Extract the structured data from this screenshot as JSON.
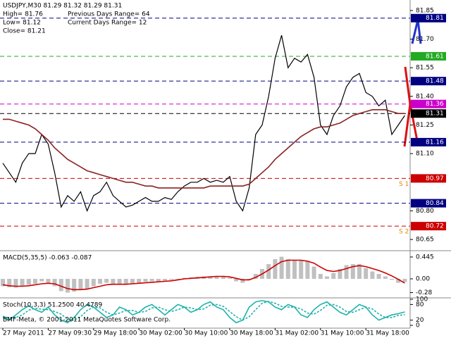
{
  "chart_data": [
    {
      "type": "line",
      "title": "USDJPY,M30  81.29 81.32 81.29 81.31",
      "annotations": [
        "High= 81.76",
        "Previous Days Range= 64",
        "Low= 81.12",
        "Current Days Range= 12",
        "Close= 81.21"
      ],
      "level_annotations": [
        "S 1",
        "S 2"
      ],
      "categories": [
        "27 May 2011",
        null,
        null,
        null,
        null,
        null,
        null,
        "27 May 09:30",
        null,
        null,
        null,
        null,
        null,
        null,
        "29 May 18:00",
        null,
        null,
        null,
        null,
        null,
        null,
        "30 May 02:00",
        null,
        null,
        null,
        null,
        null,
        null,
        "30 May 10:00",
        null,
        null,
        null,
        null,
        null,
        null,
        "30 May 18:00",
        null,
        null,
        null,
        null,
        null,
        null,
        "31 May 02:00",
        null,
        null,
        null,
        null,
        null,
        null,
        "31 May 10:00",
        null,
        null,
        null,
        null,
        null,
        null,
        "31 May 18:00",
        null,
        null,
        null,
        null,
        null,
        null
      ],
      "series": [
        {
          "name": "USDJPY",
          "color": "#000000",
          "values": [
            81.05,
            81.0,
            80.95,
            81.05,
            81.1,
            81.1,
            81.2,
            81.15,
            81.0,
            80.82,
            80.88,
            80.85,
            80.9,
            80.8,
            80.88,
            80.9,
            80.95,
            80.88,
            80.85,
            80.82,
            80.83,
            80.85,
            80.87,
            80.85,
            80.85,
            80.87,
            80.86,
            80.9,
            80.93,
            80.95,
            80.95,
            80.97,
            80.95,
            80.96,
            80.95,
            80.98,
            80.85,
            80.8,
            80.92,
            81.2,
            81.25,
            81.4,
            81.6,
            81.72,
            81.55,
            81.6,
            81.58,
            81.62,
            81.5,
            81.25,
            81.2,
            81.3,
            81.35,
            81.45,
            81.5,
            81.52,
            81.42,
            81.4,
            81.35,
            81.38,
            81.2,
            81.25,
            81.3
          ]
        },
        {
          "name": "MA",
          "color": "#8b2323",
          "values": [
            81.28,
            81.28,
            81.27,
            81.26,
            81.25,
            81.23,
            81.2,
            81.17,
            81.13,
            81.1,
            81.07,
            81.05,
            81.03,
            81.01,
            81.0,
            80.99,
            80.98,
            80.97,
            80.96,
            80.95,
            80.95,
            80.94,
            80.93,
            80.93,
            80.92,
            80.92,
            80.92,
            80.92,
            80.92,
            80.92,
            80.92,
            80.92,
            80.93,
            80.93,
            80.93,
            80.93,
            80.93,
            80.93,
            80.94,
            80.97,
            81.0,
            81.03,
            81.07,
            81.1,
            81.13,
            81.16,
            81.19,
            81.21,
            81.23,
            81.24,
            81.24,
            81.25,
            81.26,
            81.28,
            81.3,
            81.31,
            81.32,
            81.33,
            81.33,
            81.33,
            81.32,
            81.31,
            81.31
          ]
        }
      ],
      "levels": [
        {
          "value": 81.81,
          "color": "#000080"
        },
        {
          "value": 81.61,
          "color": "#22aa22"
        },
        {
          "value": 81.48,
          "color": "#000080"
        },
        {
          "value": 81.36,
          "color": "#cc00cc"
        },
        {
          "value": 81.31,
          "color": "#000000"
        },
        {
          "value": 81.16,
          "color": "#000080"
        },
        {
          "value": 80.97,
          "color": "#cc0000"
        },
        {
          "value": 80.84,
          "color": "#000080"
        },
        {
          "value": 80.72,
          "color": "#cc0000"
        }
      ],
      "ylim": [
        80.595,
        81.905
      ],
      "yticks": [
        81.85,
        {
          "value": 81.7,
          "label": "81.70"
        },
        81.55,
        {
          "value": 81.4,
          "label": "81.40"
        },
        81.25,
        {
          "value": 81.1,
          "label": "81.10"
        },
        {
          "value": 80.8,
          "label": "80.80"
        },
        80.65
      ]
    },
    {
      "type": "bar",
      "title": "MACD(5,35,5) -0.063 -0.087",
      "series": [
        {
          "name": "MACD",
          "type": "bar",
          "color": "#c0c0c0",
          "values": [
            -0.15,
            -0.17,
            -0.18,
            -0.15,
            -0.12,
            -0.1,
            -0.05,
            -0.08,
            -0.15,
            -0.25,
            -0.28,
            -0.26,
            -0.22,
            -0.2,
            -0.15,
            -0.1,
            -0.08,
            -0.1,
            -0.12,
            -0.12,
            -0.1,
            -0.08,
            -0.06,
            -0.05,
            -0.05,
            -0.04,
            -0.02,
            0.0,
            0.02,
            0.03,
            0.04,
            0.05,
            0.05,
            0.06,
            0.06,
            0.02,
            -0.05,
            -0.08,
            -0.02,
            0.1,
            0.2,
            0.3,
            0.4,
            0.45,
            0.4,
            0.38,
            0.38,
            0.35,
            0.25,
            0.1,
            0.05,
            0.12,
            0.2,
            0.28,
            0.3,
            0.3,
            0.22,
            0.15,
            0.1,
            0.05,
            -0.02,
            -0.08,
            -0.063
          ]
        },
        {
          "name": "Signal",
          "type": "line",
          "color": "#cc0000",
          "values": [
            -0.12,
            -0.14,
            -0.15,
            -0.15,
            -0.14,
            -0.12,
            -0.1,
            -0.09,
            -0.1,
            -0.15,
            -0.2,
            -0.22,
            -0.22,
            -0.21,
            -0.18,
            -0.15,
            -0.12,
            -0.11,
            -0.11,
            -0.11,
            -0.1,
            -0.09,
            -0.08,
            -0.07,
            -0.06,
            -0.05,
            -0.04,
            -0.02,
            0.0,
            0.01,
            0.02,
            0.03,
            0.04,
            0.05,
            0.05,
            0.04,
            0.01,
            -0.02,
            -0.02,
            0.03,
            0.1,
            0.18,
            0.27,
            0.35,
            0.38,
            0.38,
            0.38,
            0.36,
            0.32,
            0.24,
            0.17,
            0.15,
            0.17,
            0.21,
            0.25,
            0.27,
            0.25,
            0.21,
            0.17,
            0.12,
            0.06,
            -0.01,
            -0.087
          ]
        }
      ],
      "ylim": [
        -0.373,
        0.545
      ],
      "yticks": [
        0.445,
        {
          "value": 0,
          "label": "0.00"
        },
        -0.28
      ]
    },
    {
      "type": "line",
      "title": "Stoch(10,3,3) 51.2500 40.4789",
      "copyright": "BMF-Meta, © 2001-2011 MetaQuotes Software Corp.",
      "series": [
        {
          "name": "Main",
          "color": "#20b2aa",
          "values": [
            30,
            20,
            40,
            60,
            75,
            60,
            50,
            70,
            40,
            20,
            10,
            30,
            60,
            80,
            70,
            50,
            30,
            40,
            70,
            60,
            40,
            50,
            70,
            80,
            60,
            40,
            60,
            80,
            70,
            50,
            60,
            80,
            90,
            70,
            60,
            30,
            10,
            20,
            70,
            90,
            95,
            90,
            70,
            60,
            80,
            70,
            40,
            30,
            60,
            80,
            90,
            70,
            50,
            40,
            60,
            80,
            70,
            40,
            20,
            30,
            40,
            45,
            51.25
          ]
        },
        {
          "name": "Signal",
          "color": "#20b2aa",
          "dashed": true,
          "values": [
            35,
            28,
            30,
            40,
            58,
            65,
            62,
            60,
            53,
            43,
            23,
            20,
            33,
            57,
            70,
            67,
            50,
            40,
            47,
            57,
            57,
            50,
            53,
            67,
            70,
            60,
            53,
            60,
            70,
            67,
            60,
            63,
            77,
            80,
            73,
            53,
            33,
            20,
            33,
            60,
            85,
            92,
            85,
            73,
            70,
            70,
            63,
            47,
            43,
            57,
            77,
            80,
            70,
            53,
            50,
            60,
            70,
            63,
            43,
            30,
            30,
            38,
            40.4789
          ]
        }
      ],
      "ylim": [
        0,
        100
      ],
      "yticks": [
        100,
        80,
        20,
        0
      ]
    }
  ]
}
